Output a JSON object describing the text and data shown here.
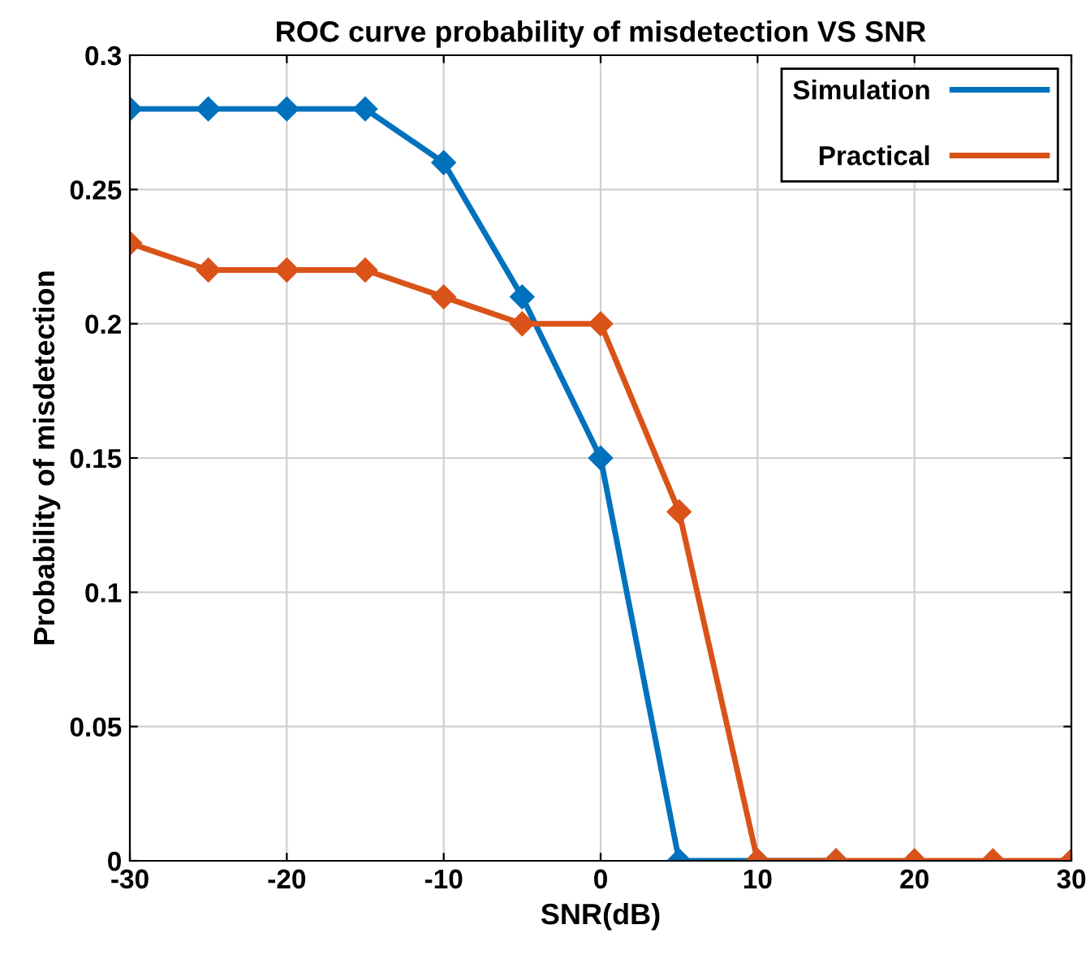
{
  "chart_data": {
    "type": "line",
    "title": "ROC curve probability of misdetection VS SNR",
    "xlabel": "SNR(dB)",
    "ylabel": "Probability of misdetection",
    "x": [
      -30,
      -25,
      -20,
      -15,
      -10,
      -5,
      0,
      5,
      10,
      15,
      20,
      25,
      30
    ],
    "series": [
      {
        "name": "Simulation",
        "color": "#0072bd",
        "values": [
          0.28,
          0.28,
          0.28,
          0.28,
          0.26,
          0.21,
          0.15,
          0,
          0,
          0,
          null,
          null,
          null
        ]
      },
      {
        "name": "Practical",
        "color": "#d95319",
        "values": [
          0.23,
          0.22,
          0.22,
          0.22,
          0.21,
          0.2,
          0.2,
          0.13,
          0,
          0,
          0,
          0,
          0
        ]
      }
    ],
    "xlim": [
      -30,
      30
    ],
    "xticks": [
      -30,
      -20,
      -10,
      0,
      10,
      20,
      30
    ],
    "ylim": [
      0,
      0.3
    ],
    "yticks": [
      0,
      0.05,
      0.1,
      0.15,
      0.2,
      0.25,
      0.3
    ],
    "grid": true,
    "legend": "top right",
    "marker": "diamond",
    "line_style": "solid"
  }
}
